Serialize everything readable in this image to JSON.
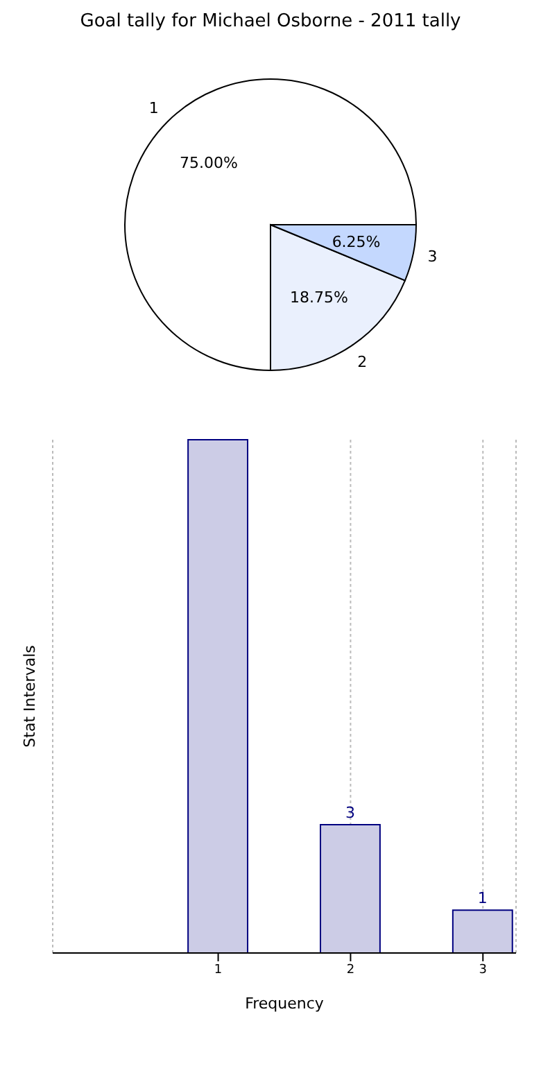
{
  "chart_data": [
    {
      "type": "pie",
      "title": "Goal tally for Michael Osborne - 2011 tally",
      "categories": [
        "1",
        "2",
        "3"
      ],
      "values": [
        75,
        18.75,
        6.25
      ],
      "colors": [
        "#ffffff",
        "#eaf0fd",
        "#c4d8fe"
      ],
      "value_labels": [
        "75.00%",
        "18.75%",
        "6.25%"
      ],
      "legend": false
    },
    {
      "type": "bar",
      "x": [
        1,
        2,
        3
      ],
      "values": [
        12,
        3,
        1
      ],
      "color": "#ccccE6",
      "value_labels": [
        null,
        "3",
        "1"
      ],
      "xlim": [
        -0.25,
        3.25
      ],
      "xticks": [
        1,
        2,
        3
      ],
      "xlabel": "Frequency",
      "ylabel": "Stat Intervals",
      "grid": "x",
      "tick_labels": "x",
      "legend": false
    }
  ]
}
